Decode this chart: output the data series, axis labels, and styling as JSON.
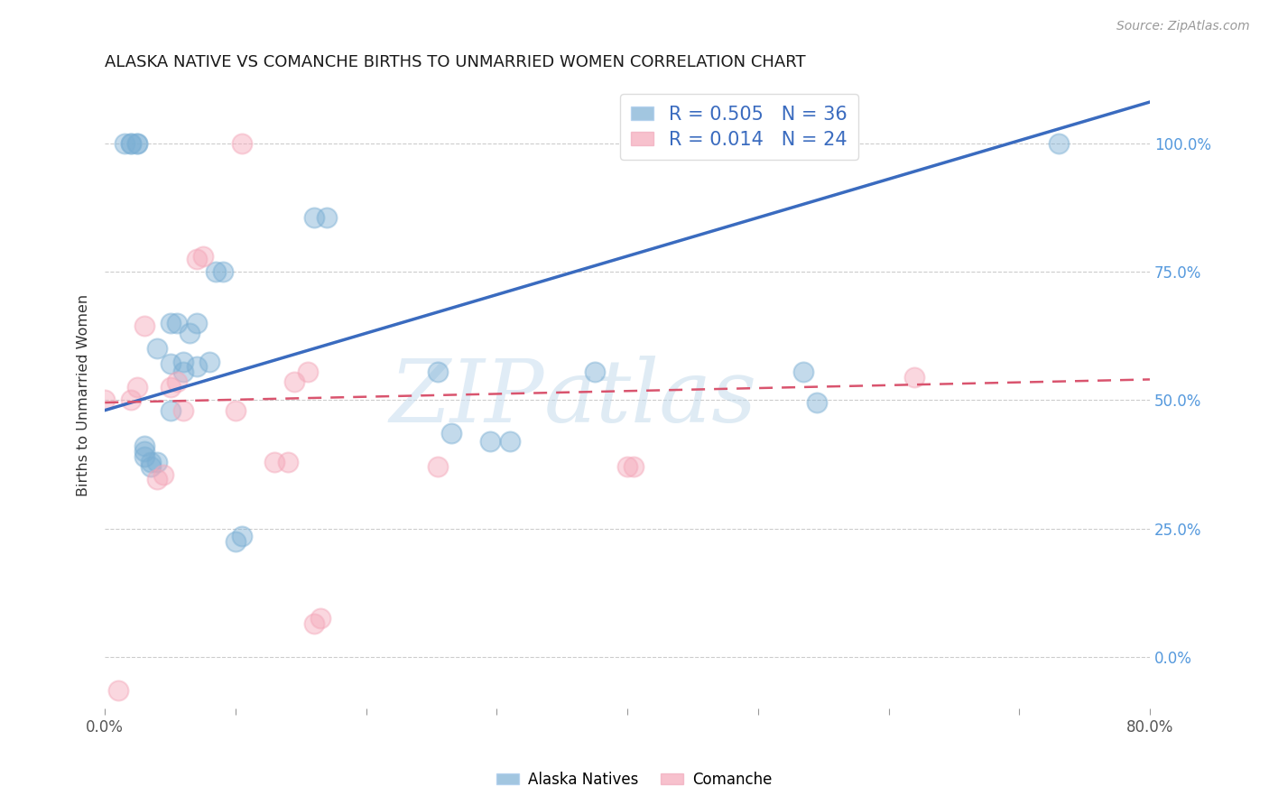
{
  "title": "ALASKA NATIVE VS COMANCHE BIRTHS TO UNMARRIED WOMEN CORRELATION CHART",
  "source": "Source: ZipAtlas.com",
  "ylabel": "Births to Unmarried Women",
  "xmin": 0.0,
  "xmax": 0.8,
  "ymin": -0.1,
  "ymax": 1.12,
  "yticks": [
    0.0,
    0.25,
    0.5,
    0.75,
    1.0
  ],
  "ytick_labels": [
    "0.0%",
    "25.0%",
    "50.0%",
    "75.0%",
    "100.0%"
  ],
  "xticks": [
    0.0,
    0.1,
    0.2,
    0.3,
    0.4,
    0.5,
    0.6,
    0.7,
    0.8
  ],
  "xtick_labels": [
    "0.0%",
    "",
    "",
    "",
    "",
    "",
    "",
    "",
    "80.0%"
  ],
  "alaska_color": "#7bafd4",
  "comanche_color": "#f4a7b9",
  "alaska_r": 0.505,
  "alaska_n": 36,
  "comanche_r": 0.014,
  "comanche_n": 24,
  "alaska_line_color": "#3a6bbf",
  "comanche_line_color": "#d9546e",
  "watermark_zip": "ZIP",
  "watermark_atlas": "atlas",
  "alaska_x": [
    0.015,
    0.02,
    0.02,
    0.025,
    0.025,
    0.03,
    0.03,
    0.03,
    0.035,
    0.035,
    0.04,
    0.04,
    0.05,
    0.05,
    0.05,
    0.055,
    0.06,
    0.06,
    0.065,
    0.07,
    0.07,
    0.08,
    0.085,
    0.09,
    0.1,
    0.105,
    0.16,
    0.17,
    0.255,
    0.265,
    0.375,
    0.31,
    0.535,
    0.545,
    0.73,
    0.295
  ],
  "alaska_y": [
    1.0,
    1.0,
    1.0,
    1.0,
    1.0,
    0.39,
    0.4,
    0.41,
    0.37,
    0.38,
    0.38,
    0.6,
    0.48,
    0.57,
    0.65,
    0.65,
    0.555,
    0.575,
    0.63,
    0.65,
    0.565,
    0.575,
    0.75,
    0.75,
    0.225,
    0.235,
    0.855,
    0.855,
    0.555,
    0.435,
    0.555,
    0.42,
    0.555,
    0.495,
    1.0,
    0.42
  ],
  "comanche_x": [
    0.0,
    0.01,
    0.02,
    0.025,
    0.03,
    0.04,
    0.045,
    0.05,
    0.055,
    0.06,
    0.07,
    0.075,
    0.1,
    0.105,
    0.13,
    0.14,
    0.145,
    0.155,
    0.16,
    0.165,
    0.255,
    0.4,
    0.405,
    0.62
  ],
  "comanche_y": [
    0.5,
    -0.065,
    0.5,
    0.525,
    0.645,
    0.345,
    0.355,
    0.525,
    0.535,
    0.48,
    0.775,
    0.78,
    0.48,
    1.0,
    0.38,
    0.38,
    0.535,
    0.555,
    0.065,
    0.075,
    0.37,
    0.37,
    0.37,
    0.545
  ],
  "alaska_line_x": [
    0.0,
    0.8
  ],
  "alaska_line_y": [
    0.48,
    1.08
  ],
  "comanche_line_x": [
    0.0,
    0.8
  ],
  "comanche_line_y": [
    0.495,
    0.54
  ]
}
